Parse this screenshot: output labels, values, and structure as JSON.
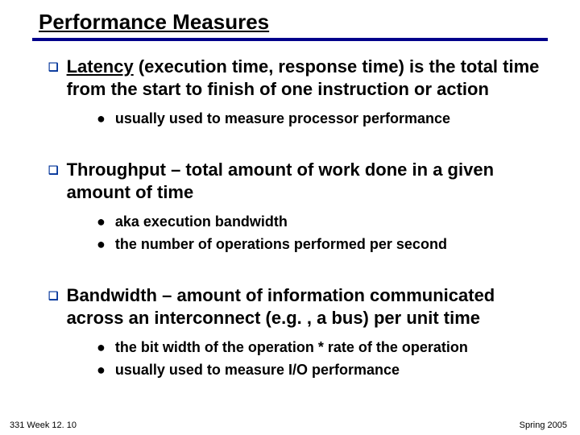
{
  "colors": {
    "rule": "#00008b",
    "l1_bullet": "#003399",
    "text": "#000000",
    "background": "#ffffff"
  },
  "title": "Performance Measures",
  "items": [
    {
      "term": "Latency",
      "term_underline": true,
      "rest": " (execution time, response time) is the total time from the start to finish of one instruction or action",
      "subs": [
        "usually used to measure processor performance"
      ]
    },
    {
      "term": "Throughput",
      "term_underline": false,
      "rest": " – total amount of work done in a given amount of time",
      "subs": [
        "aka execution bandwidth",
        "the number of operations performed per second"
      ]
    },
    {
      "term": "Bandwidth",
      "term_underline": false,
      "rest": " – amount of information communicated across an interconnect (e.g. , a bus) per unit time",
      "subs": [
        "the bit width of the operation * rate of the operation",
        "usually used to measure I/O performance"
      ]
    }
  ],
  "footer": {
    "left": "331 Week 12. 10",
    "right": "Spring 2005"
  }
}
